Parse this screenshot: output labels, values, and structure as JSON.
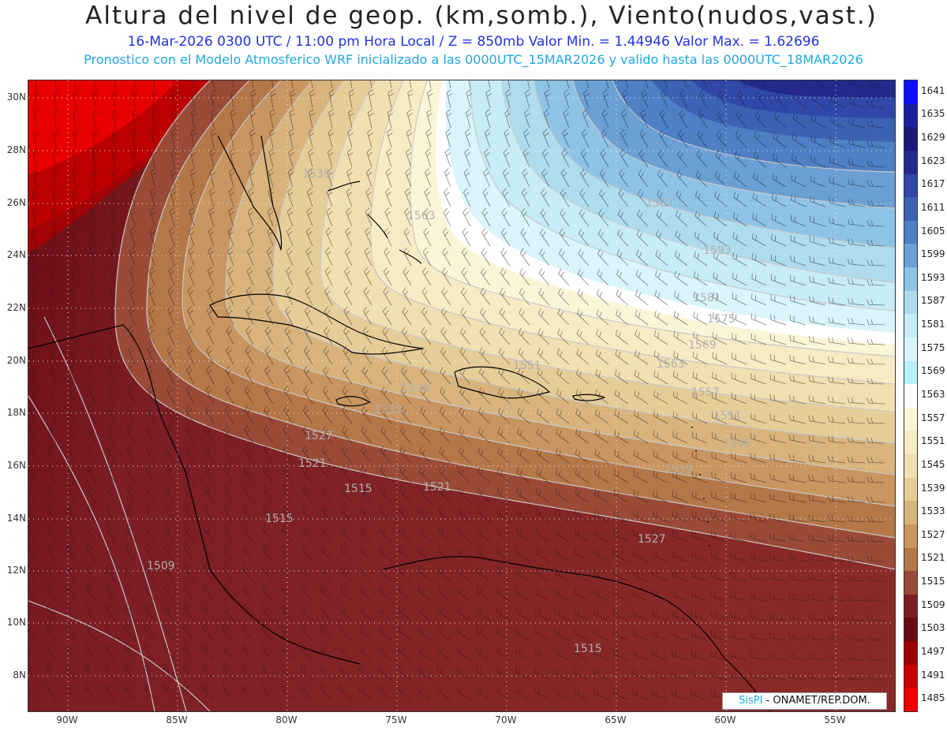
{
  "header": {
    "title": "Altura del nivel de geop. (km,somb.), Viento(nudos,vast.)",
    "subtitle": "16-Mar-2026  0300 UTC / 11:00 pm Hora Local / Z = 850mb     Valor Min. = 1.44946   Valor Max. = 1.62696",
    "info": "Pronostico con el Modelo Atmosferico WRF inicializado a las 0000UTC_15MAR2026 y valido hasta las  0000UTC_18MAR2026"
  },
  "map": {
    "latitude_labels": [
      "30N",
      "28N",
      "26N",
      "24N",
      "22N",
      "20N",
      "18N",
      "16N",
      "14N",
      "12N",
      "10N",
      "8N"
    ],
    "longitude_labels": [
      "90W",
      "85W",
      "80W",
      "75W",
      "70W",
      "65W",
      "60W",
      "55W"
    ],
    "contour_labels": [
      "1539",
      "1563",
      "1587",
      "1593",
      "1581",
      "1575",
      "1569",
      "1563",
      "1557",
      "1551",
      "1545",
      "1539",
      "1527",
      "1521",
      "1515",
      "1551",
      "1539",
      "1533",
      "1527",
      "1521",
      "1515",
      "1509",
      "1515"
    ],
    "credit_brand": "SisPI",
    "credit_org": "- ONAMET/REP.DOM."
  },
  "colorbar": {
    "levels": [
      "1641",
      "1635",
      "1629",
      "1623",
      "1617",
      "1611",
      "1605",
      "1599",
      "1593",
      "1587",
      "1581",
      "1575",
      "1569",
      "1563",
      "1557",
      "1551",
      "1545",
      "1539",
      "1533",
      "1527",
      "1521",
      "1515",
      "1509",
      "1503",
      "1497",
      "1491",
      "1485"
    ],
    "colors": [
      "#0a12f5",
      "#1b1f9e",
      "#171a78",
      "#232a8c",
      "#2f48a8",
      "#3b62b3",
      "#4f7fc4",
      "#6aa0d4",
      "#8ec3e6",
      "#aedcee",
      "#c6ecf6",
      "#d9f5fb",
      "#b8f0fa",
      "#ffffff",
      "#fbf5d8",
      "#f7ebc4",
      "#f0dfb0",
      "#e6cd98",
      "#d8b47c",
      "#c99560",
      "#b47748",
      "#9b4a38",
      "#7c1e24",
      "#6a0a12",
      "#9a0000",
      "#c80000",
      "#ee0000"
    ]
  }
}
